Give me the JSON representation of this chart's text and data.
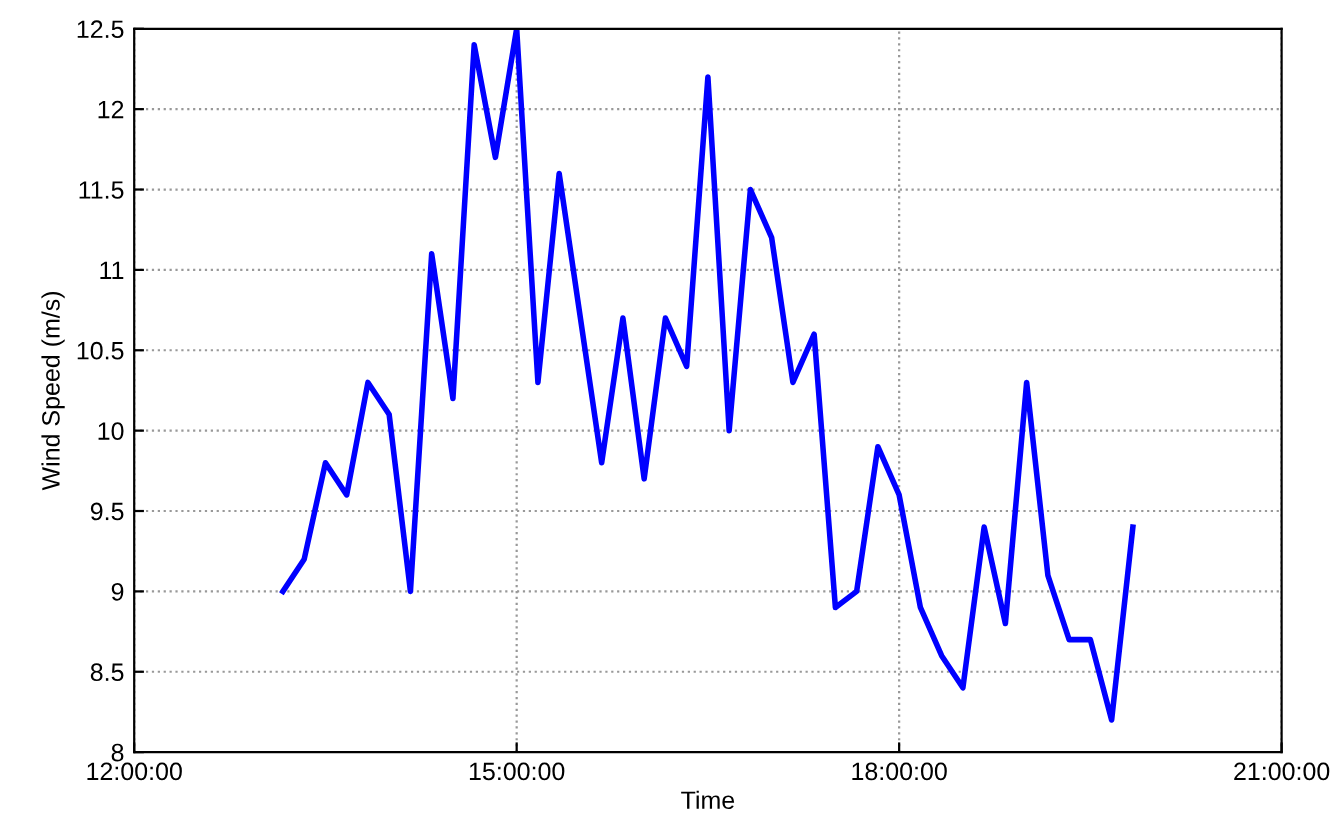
{
  "chart_data": {
    "type": "line",
    "xlabel": "Time",
    "ylabel": "Wind Speed (m/s)",
    "x": [
      13.1667,
      13.3333,
      13.5,
      13.6667,
      13.8333,
      14,
      14.1667,
      14.3333,
      14.5,
      14.6667,
      14.8333,
      15,
      15.1667,
      15.3333,
      15.5,
      15.6667,
      15.8333,
      16,
      16.1667,
      16.3333,
      16.5,
      16.6667,
      16.8333,
      17,
      17.1667,
      17.3333,
      17.5,
      17.6667,
      17.8333,
      18,
      18.1667,
      18.3333,
      18.5,
      18.6667,
      18.8333,
      19,
      19.1667,
      19.3333,
      19.5,
      19.6667,
      19.8333
    ],
    "series": [
      {
        "color": "#0000ff",
        "values": [
          9.0,
          9.2,
          9.8,
          9.6,
          10.3,
          10.1,
          9.0,
          11.1,
          10.2,
          12.4,
          11.7,
          12.5,
          10.3,
          11.6,
          10.7,
          9.8,
          10.7,
          9.7,
          10.7,
          10.4,
          12.2,
          10.0,
          11.5,
          11.2,
          10.3,
          10.6,
          8.9,
          9.0,
          9.9,
          9.6,
          8.9,
          8.6,
          8.4,
          9.4,
          8.8,
          10.3,
          9.1,
          8.7,
          8.7,
          8.2,
          9.4
        ]
      }
    ],
    "xlim": [
      12,
      21
    ],
    "xticks": [
      {
        "value": 12,
        "label": "12:00:00"
      },
      {
        "value": 15,
        "label": "15:00:00"
      },
      {
        "value": 18,
        "label": "18:00:00"
      },
      {
        "value": 21,
        "label": "21:00:00"
      }
    ],
    "ylim": [
      8,
      12.5
    ],
    "yticks": [
      8,
      8.5,
      9,
      9.5,
      10,
      10.5,
      11,
      11.5,
      12,
      12.5
    ],
    "grid": true,
    "marker": "none",
    "line_style": "solid"
  }
}
